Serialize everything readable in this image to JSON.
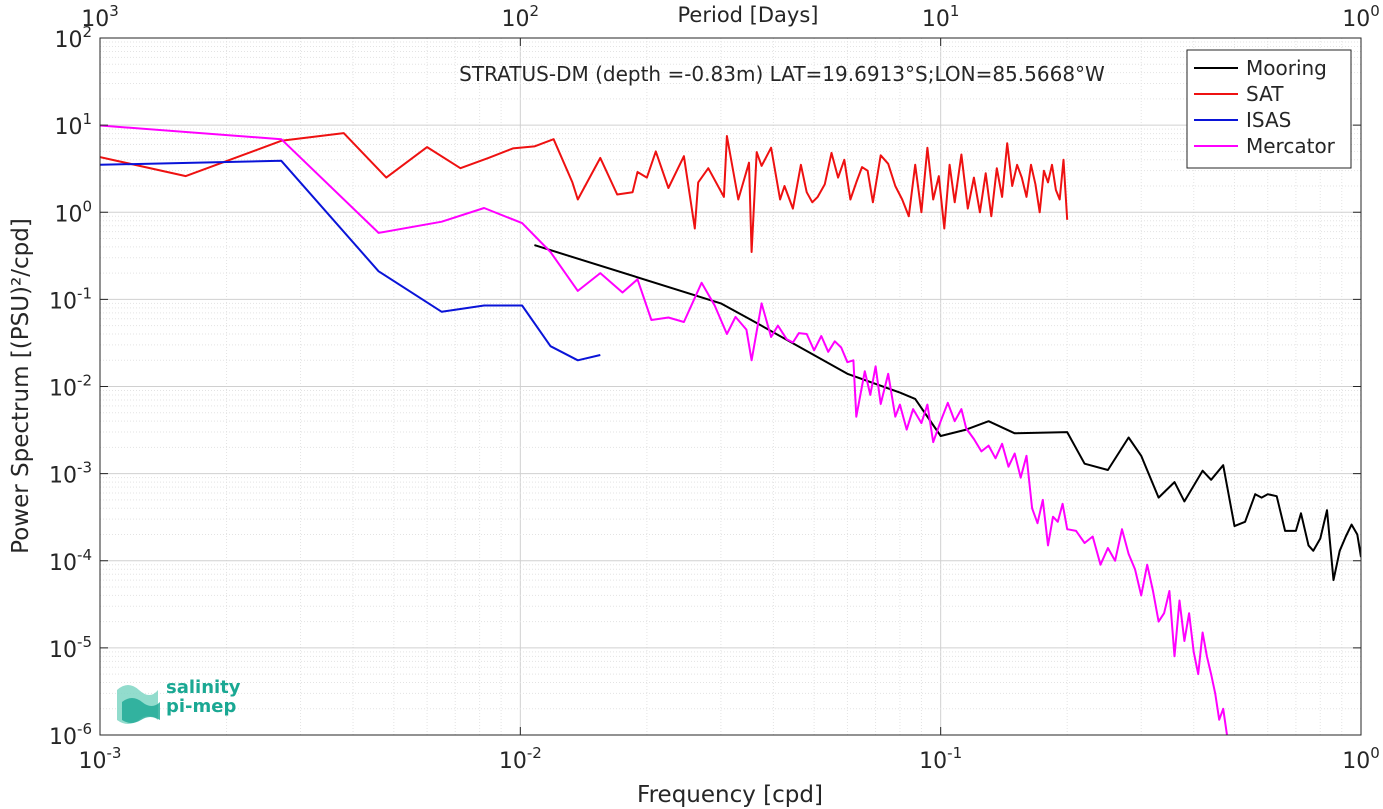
{
  "chart_data": {
    "type": "line",
    "title": "STRATUS-DM (depth =-0.83m) LAT=19.6913°S;LON=85.5668°W",
    "xlabel": "Frequency [cpd]",
    "ylabel": "Power Spectrum [(PSU)²/cpd]",
    "top_axis_label": "Period [Days]",
    "xscale": "log",
    "yscale": "log",
    "xlim": [
      0.001,
      1
    ],
    "ylim": [
      1e-06,
      100
    ],
    "grid": true,
    "legend_position": "top-right",
    "x_ticks": [
      {
        "value": 0.001,
        "base": "10",
        "exp": "-3"
      },
      {
        "value": 0.01,
        "base": "10",
        "exp": "-2"
      },
      {
        "value": 0.1,
        "base": "10",
        "exp": "-1"
      },
      {
        "value": 1,
        "base": "10",
        "exp": "0"
      }
    ],
    "top_ticks": [
      {
        "value": 0.001,
        "base": "10",
        "exp": "3"
      },
      {
        "value": 0.01,
        "base": "10",
        "exp": "2"
      },
      {
        "value": 0.1,
        "base": "10",
        "exp": "1"
      },
      {
        "value": 1,
        "base": "10",
        "exp": "0"
      }
    ],
    "y_ticks": [
      {
        "value": 1e-06,
        "base": "10",
        "exp": "-6"
      },
      {
        "value": 1e-05,
        "base": "10",
        "exp": "-5"
      },
      {
        "value": 0.0001,
        "base": "10",
        "exp": "-4"
      },
      {
        "value": 0.001,
        "base": "10",
        "exp": "-3"
      },
      {
        "value": 0.01,
        "base": "10",
        "exp": "-2"
      },
      {
        "value": 0.1,
        "base": "10",
        "exp": "-1"
      },
      {
        "value": 1,
        "base": "10",
        "exp": "0"
      },
      {
        "value": 10,
        "base": "10",
        "exp": "1"
      },
      {
        "value": 100,
        "base": "10",
        "exp": "2"
      }
    ],
    "series": [
      {
        "name": "Mooring",
        "color": "#000000",
        "points": [
          [
            0.0108,
            0.42
          ],
          [
            0.03,
            0.09
          ],
          [
            0.035,
            0.06
          ],
          [
            0.06,
            0.014
          ],
          [
            0.08,
            0.0085
          ],
          [
            0.087,
            0.0072
          ],
          [
            0.1,
            0.0027
          ],
          [
            0.115,
            0.0032
          ],
          [
            0.13,
            0.004
          ],
          [
            0.15,
            0.0029
          ],
          [
            0.2,
            0.003
          ],
          [
            0.22,
            0.0013
          ],
          [
            0.25,
            0.0011
          ],
          [
            0.28,
            0.0026
          ],
          [
            0.3,
            0.0016
          ],
          [
            0.33,
            0.00053
          ],
          [
            0.36,
            0.0008
          ],
          [
            0.38,
            0.00048
          ],
          [
            0.42,
            0.00108
          ],
          [
            0.44,
            0.00085
          ],
          [
            0.47,
            0.00125
          ],
          [
            0.5,
            0.00025
          ],
          [
            0.53,
            0.00028
          ],
          [
            0.56,
            0.00058
          ],
          [
            0.58,
            0.00053
          ],
          [
            0.6,
            0.00058
          ],
          [
            0.63,
            0.00055
          ],
          [
            0.66,
            0.00022
          ],
          [
            0.7,
            0.00022
          ],
          [
            0.72,
            0.00035
          ],
          [
            0.75,
            0.00015
          ],
          [
            0.77,
            0.00013
          ],
          [
            0.8,
            0.00018
          ],
          [
            0.83,
            0.00038
          ],
          [
            0.86,
            6e-05
          ],
          [
            0.89,
            0.00013
          ],
          [
            0.92,
            0.00019
          ],
          [
            0.95,
            0.00026
          ],
          [
            0.98,
            0.0002
          ],
          [
            1.0,
            0.00011
          ]
        ]
      },
      {
        "name": "SAT",
        "color": "#ee1111",
        "points": [
          [
            0.001,
            4.3
          ],
          [
            0.0016,
            2.6
          ],
          [
            0.0027,
            6.6
          ],
          [
            0.0038,
            8.1
          ],
          [
            0.0048,
            2.5
          ],
          [
            0.006,
            5.6
          ],
          [
            0.0072,
            3.2
          ],
          [
            0.0084,
            4.2
          ],
          [
            0.0096,
            5.4
          ],
          [
            0.0108,
            5.7
          ],
          [
            0.012,
            6.9
          ],
          [
            0.0133,
            2.2
          ],
          [
            0.0137,
            1.4
          ],
          [
            0.0155,
            4.2
          ],
          [
            0.017,
            1.6
          ],
          [
            0.0185,
            1.7
          ],
          [
            0.019,
            2.9
          ],
          [
            0.02,
            2.5
          ],
          [
            0.021,
            5.0
          ],
          [
            0.0225,
            1.9
          ],
          [
            0.0245,
            4.4
          ],
          [
            0.026,
            0.65
          ],
          [
            0.0265,
            2.2
          ],
          [
            0.028,
            3.2
          ],
          [
            0.0305,
            1.5
          ],
          [
            0.031,
            7.5
          ],
          [
            0.033,
            1.4
          ],
          [
            0.035,
            3.7
          ],
          [
            0.0355,
            0.35
          ],
          [
            0.0365,
            4.9
          ],
          [
            0.0375,
            3.4
          ],
          [
            0.0395,
            5.5
          ],
          [
            0.0415,
            1.4
          ],
          [
            0.0425,
            2.0
          ],
          [
            0.0445,
            1.1
          ],
          [
            0.0465,
            3.5
          ],
          [
            0.048,
            1.7
          ],
          [
            0.0495,
            1.3
          ],
          [
            0.051,
            1.5
          ],
          [
            0.053,
            2.1
          ],
          [
            0.055,
            4.8
          ],
          [
            0.057,
            2.5
          ],
          [
            0.059,
            4.0
          ],
          [
            0.061,
            1.4
          ],
          [
            0.063,
            2.2
          ],
          [
            0.065,
            3.3
          ],
          [
            0.067,
            3.0
          ],
          [
            0.069,
            1.3
          ],
          [
            0.072,
            4.5
          ],
          [
            0.075,
            3.6
          ],
          [
            0.078,
            2.0
          ],
          [
            0.081,
            1.4
          ],
          [
            0.084,
            0.9
          ],
          [
            0.087,
            3.5
          ],
          [
            0.09,
            1.0
          ],
          [
            0.093,
            5.5
          ],
          [
            0.096,
            1.4
          ],
          [
            0.099,
            2.6
          ],
          [
            0.102,
            0.65
          ],
          [
            0.105,
            3.5
          ],
          [
            0.108,
            1.3
          ],
          [
            0.112,
            4.6
          ],
          [
            0.116,
            1.1
          ],
          [
            0.12,
            2.5
          ],
          [
            0.124,
            1.0
          ],
          [
            0.128,
            2.8
          ],
          [
            0.132,
            0.9
          ],
          [
            0.136,
            3.2
          ],
          [
            0.14,
            1.5
          ],
          [
            0.144,
            6.2
          ],
          [
            0.148,
            2.0
          ],
          [
            0.152,
            3.5
          ],
          [
            0.156,
            2.5
          ],
          [
            0.16,
            1.5
          ],
          [
            0.164,
            3.5
          ],
          [
            0.168,
            2.1
          ],
          [
            0.172,
            1.0
          ],
          [
            0.176,
            3.0
          ],
          [
            0.18,
            2.2
          ],
          [
            0.184,
            3.5
          ],
          [
            0.188,
            1.8
          ],
          [
            0.192,
            1.4
          ],
          [
            0.196,
            4.0
          ],
          [
            0.2,
            0.82
          ]
        ]
      },
      {
        "name": "ISAS",
        "color": "#0a14d8",
        "points": [
          [
            0.001,
            3.5
          ],
          [
            0.0027,
            3.9
          ],
          [
            0.0046,
            0.21
          ],
          [
            0.0065,
            0.072
          ],
          [
            0.0082,
            0.085
          ],
          [
            0.0101,
            0.085
          ],
          [
            0.0118,
            0.029
          ],
          [
            0.0137,
            0.02
          ],
          [
            0.0155,
            0.023
          ]
        ]
      },
      {
        "name": "Mercator",
        "color": "#ff00ff",
        "points": [
          [
            0.001,
            9.9
          ],
          [
            0.0027,
            6.9
          ],
          [
            0.0046,
            0.58
          ],
          [
            0.0065,
            0.78
          ],
          [
            0.0082,
            1.12
          ],
          [
            0.0101,
            0.75
          ],
          [
            0.0118,
            0.35
          ],
          [
            0.0137,
            0.125
          ],
          [
            0.0155,
            0.2
          ],
          [
            0.0175,
            0.12
          ],
          [
            0.019,
            0.17
          ],
          [
            0.0205,
            0.058
          ],
          [
            0.0225,
            0.062
          ],
          [
            0.0245,
            0.055
          ],
          [
            0.027,
            0.155
          ],
          [
            0.029,
            0.085
          ],
          [
            0.031,
            0.04
          ],
          [
            0.0325,
            0.063
          ],
          [
            0.0345,
            0.045
          ],
          [
            0.0355,
            0.02
          ],
          [
            0.0375,
            0.09
          ],
          [
            0.0395,
            0.037
          ],
          [
            0.041,
            0.05
          ],
          [
            0.043,
            0.035
          ],
          [
            0.0445,
            0.032
          ],
          [
            0.046,
            0.041
          ],
          [
            0.048,
            0.04
          ],
          [
            0.05,
            0.026
          ],
          [
            0.052,
            0.038
          ],
          [
            0.054,
            0.025
          ],
          [
            0.056,
            0.033
          ],
          [
            0.058,
            0.028
          ],
          [
            0.06,
            0.019
          ],
          [
            0.062,
            0.02
          ],
          [
            0.063,
            0.0045
          ],
          [
            0.066,
            0.015
          ],
          [
            0.068,
            0.008
          ],
          [
            0.07,
            0.017
          ],
          [
            0.072,
            0.0063
          ],
          [
            0.075,
            0.014
          ],
          [
            0.078,
            0.0045
          ],
          [
            0.08,
            0.0062
          ],
          [
            0.083,
            0.0032
          ],
          [
            0.086,
            0.0055
          ],
          [
            0.09,
            0.0038
          ],
          [
            0.093,
            0.0062
          ],
          [
            0.096,
            0.0023
          ],
          [
            0.1,
            0.004
          ],
          [
            0.104,
            0.0065
          ],
          [
            0.108,
            0.004
          ],
          [
            0.112,
            0.0055
          ],
          [
            0.115,
            0.0033
          ],
          [
            0.12,
            0.0025
          ],
          [
            0.125,
            0.0018
          ],
          [
            0.13,
            0.0021
          ],
          [
            0.135,
            0.0015
          ],
          [
            0.14,
            0.0022
          ],
          [
            0.145,
            0.0012
          ],
          [
            0.15,
            0.0017
          ],
          [
            0.155,
            0.0009
          ],
          [
            0.16,
            0.0016
          ],
          [
            0.165,
            0.0004
          ],
          [
            0.17,
            0.00027
          ],
          [
            0.175,
            0.0005
          ],
          [
            0.18,
            0.00015
          ],
          [
            0.185,
            0.00032
          ],
          [
            0.19,
            0.00028
          ],
          [
            0.195,
            0.00045
          ],
          [
            0.2,
            0.00023
          ],
          [
            0.21,
            0.00022
          ],
          [
            0.22,
            0.00016
          ],
          [
            0.23,
            0.00019
          ],
          [
            0.24,
            9e-05
          ],
          [
            0.25,
            0.00014
          ],
          [
            0.26,
            0.0001
          ],
          [
            0.27,
            0.00023
          ],
          [
            0.28,
            0.00012
          ],
          [
            0.29,
            8e-05
          ],
          [
            0.3,
            4e-05
          ],
          [
            0.31,
            9e-05
          ],
          [
            0.32,
            4.5e-05
          ],
          [
            0.33,
            2e-05
          ],
          [
            0.34,
            2.5e-05
          ],
          [
            0.35,
            4.5e-05
          ],
          [
            0.36,
            8e-06
          ],
          [
            0.37,
            3.5e-05
          ],
          [
            0.38,
            1.2e-05
          ],
          [
            0.39,
            2.5e-05
          ],
          [
            0.4,
            9e-06
          ],
          [
            0.41,
            5e-06
          ],
          [
            0.42,
            1.5e-05
          ],
          [
            0.43,
            8e-06
          ],
          [
            0.44,
            5e-06
          ],
          [
            0.45,
            3e-06
          ],
          [
            0.46,
            1.5e-06
          ],
          [
            0.47,
            2e-06
          ],
          [
            0.48,
            1e-06
          ]
        ]
      }
    ]
  },
  "logo": {
    "line1": "salinity",
    "line2": "pi-mep",
    "color": "#1aa893"
  }
}
